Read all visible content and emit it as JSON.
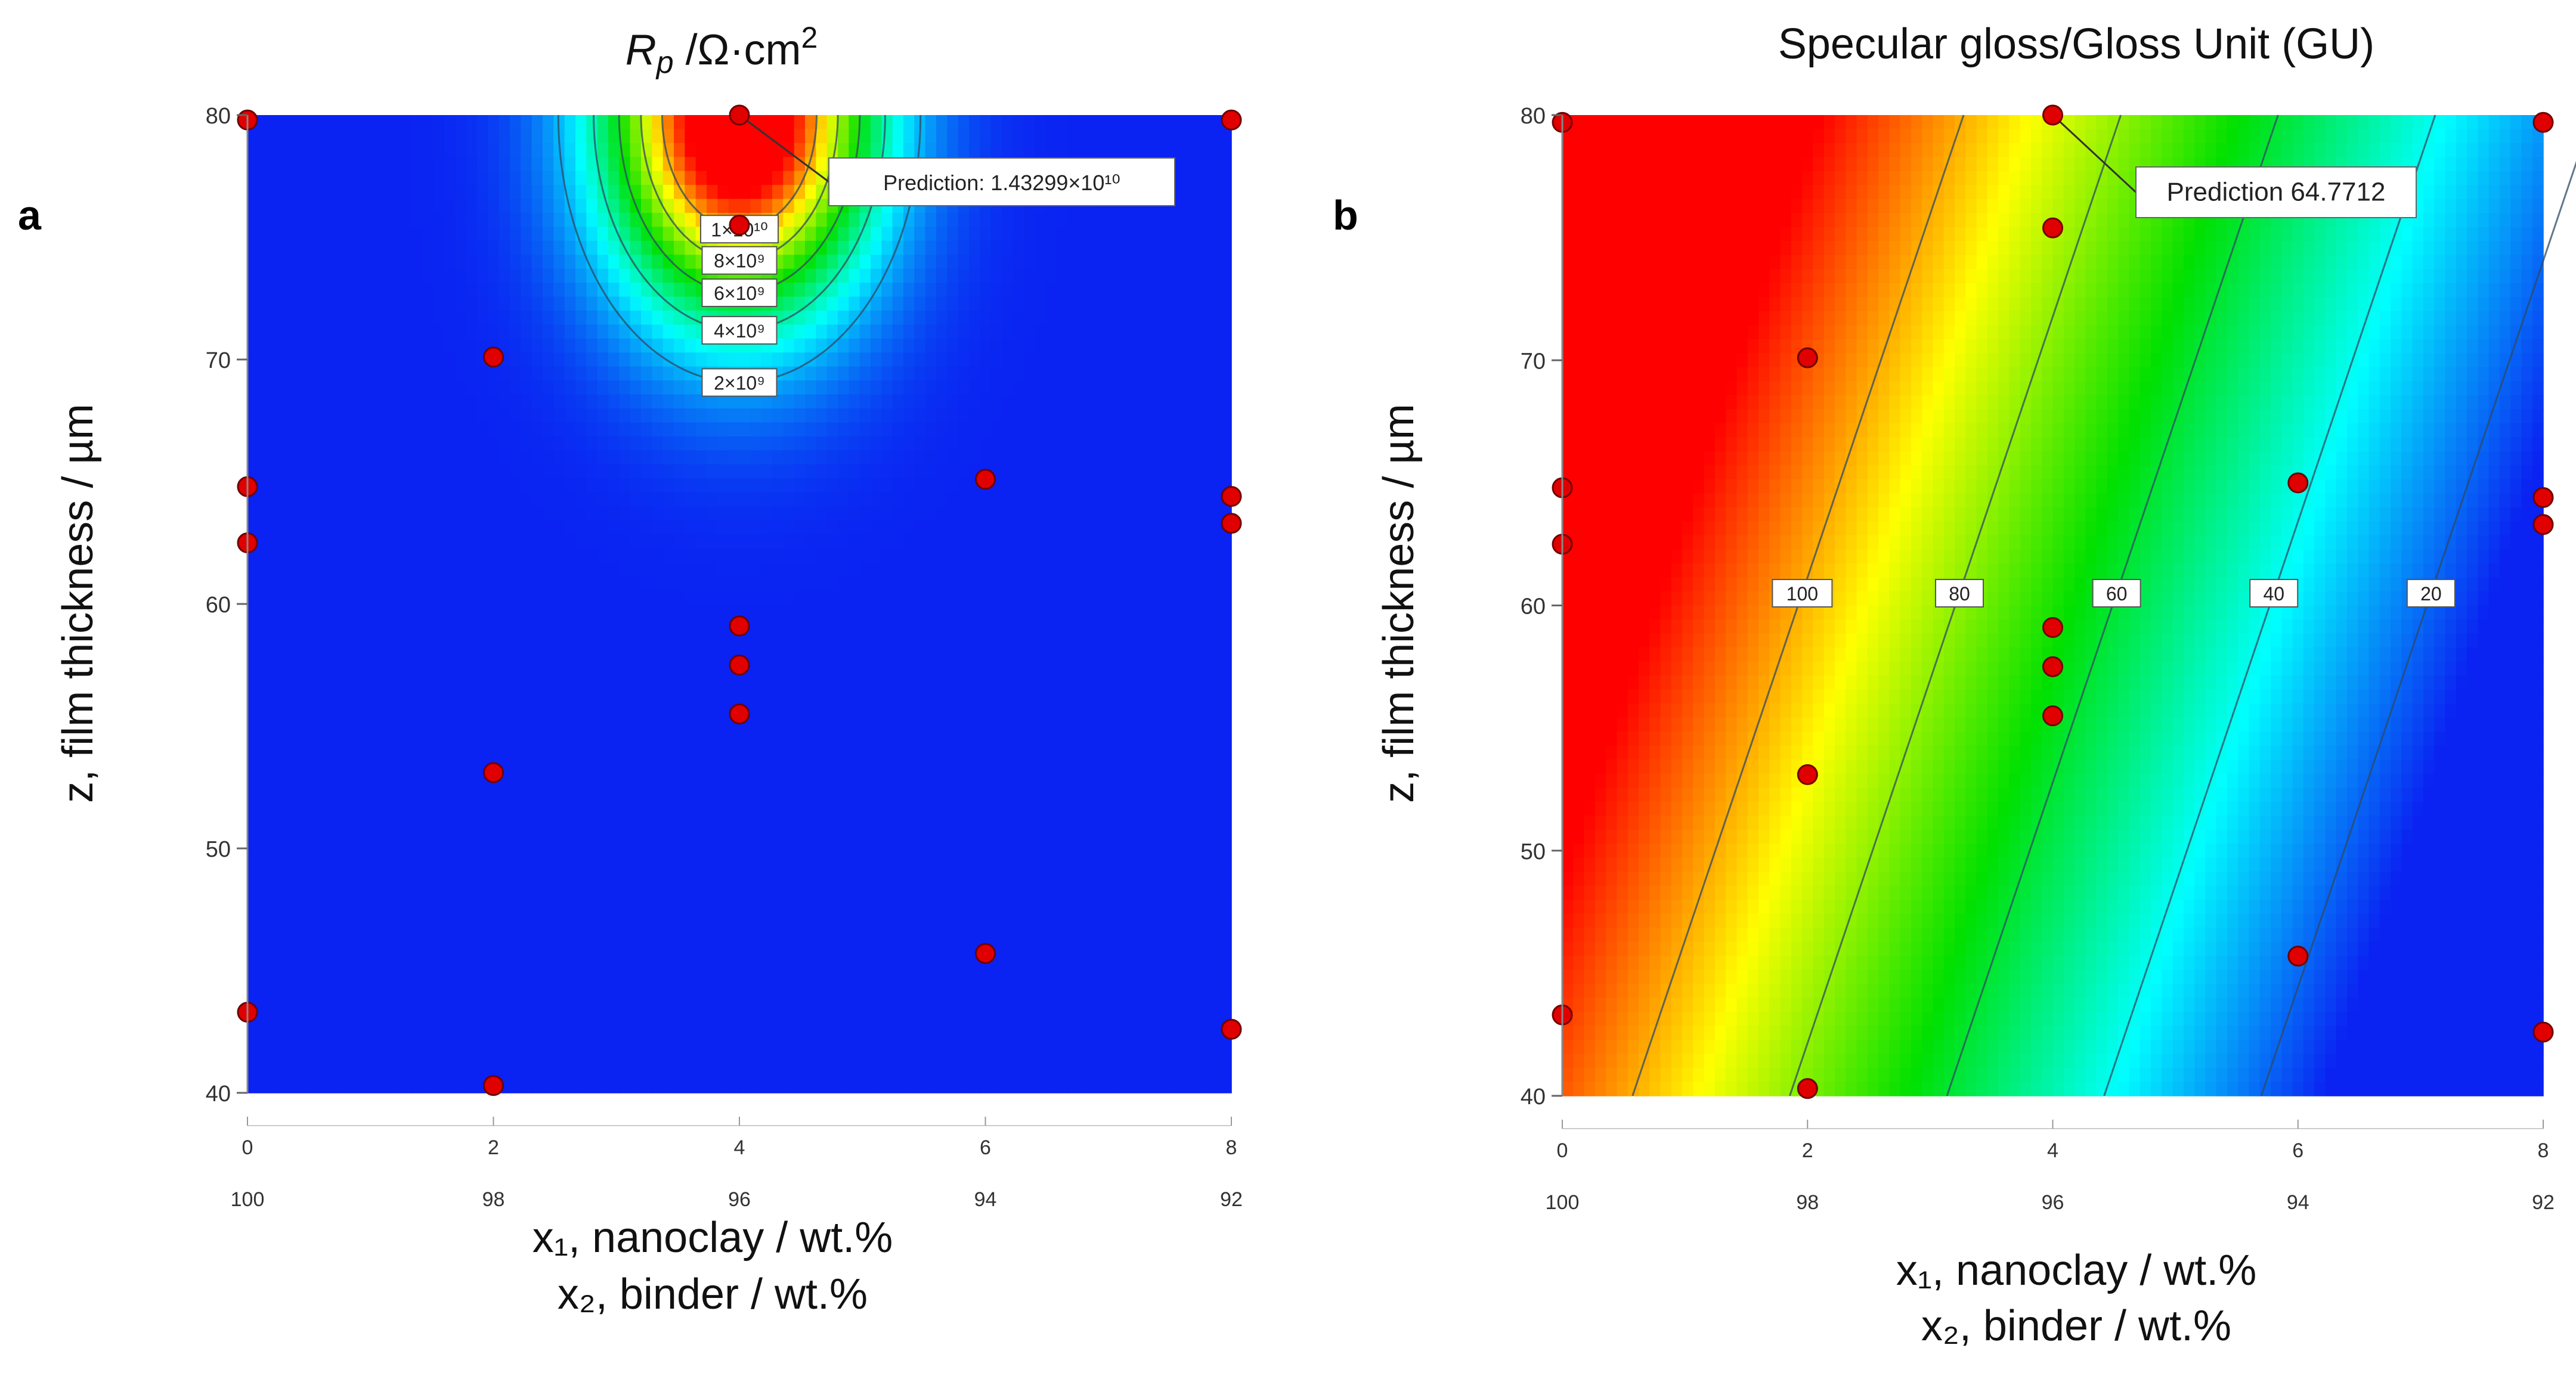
{
  "chart_data": [
    {
      "type": "heatmap",
      "panel_letter": "a",
      "title": "R",
      "title_sub": "p",
      "title_rest": " /Ω·cm",
      "title_sup": "2",
      "ylabel": "z, film thickness / µm",
      "xlabel_line1": "x₁, nanoclay / wt.%",
      "xlabel_line2": "x₂, binder / wt.%",
      "xlim": [
        0,
        8
      ],
      "ylim": [
        40,
        80
      ],
      "x_ticks": [
        "0",
        "2",
        "4",
        "6",
        "8"
      ],
      "x2_ticks": [
        "100",
        "98",
        "96",
        "94",
        "92"
      ],
      "y_ticks": [
        "40",
        "50",
        "60",
        "70",
        "80"
      ],
      "colorscale": [
        "#0a22f2",
        "#00ffff",
        "#00e000",
        "#ffff00",
        "#ff0000"
      ],
      "contours": [
        {
          "label": "2×10⁹",
          "level": 2000000000
        },
        {
          "label": "4×10⁹",
          "level": 4000000000
        },
        {
          "label": "6×10⁹",
          "level": 6000000000
        },
        {
          "label": "8×10⁹",
          "level": 8000000000
        },
        {
          "label": "1×10¹⁰",
          "level": 10000000000
        }
      ],
      "prediction_label": "Prediction: 1.43299×10¹⁰",
      "prediction_point": {
        "x": 4,
        "y": 80
      },
      "points": [
        {
          "x": 0,
          "y": 79.8
        },
        {
          "x": 0,
          "y": 64.8
        },
        {
          "x": 0,
          "y": 62.5
        },
        {
          "x": 0,
          "y": 43.3
        },
        {
          "x": 2,
          "y": 70.1
        },
        {
          "x": 2,
          "y": 53.1
        },
        {
          "x": 2,
          "y": 40.3
        },
        {
          "x": 4,
          "y": 80.0
        },
        {
          "x": 4,
          "y": 75.5
        },
        {
          "x": 4,
          "y": 59.1
        },
        {
          "x": 4,
          "y": 57.5
        },
        {
          "x": 4,
          "y": 55.5
        },
        {
          "x": 6,
          "y": 65.1
        },
        {
          "x": 6,
          "y": 45.7
        },
        {
          "x": 8,
          "y": 79.8
        },
        {
          "x": 8,
          "y": 64.4
        },
        {
          "x": 8,
          "y": 63.3
        },
        {
          "x": 8,
          "y": 42.6
        }
      ]
    },
    {
      "type": "heatmap",
      "panel_letter": "b",
      "title": "Specular gloss/Gloss Unit (GU)",
      "ylabel": "z, film thickness / µm",
      "xlabel_line1": "x₁, nanoclay / wt.%",
      "xlabel_line2": "x₂, binder / wt.%",
      "xlim": [
        0,
        8
      ],
      "ylim": [
        40,
        80
      ],
      "x_ticks": [
        "0",
        "2",
        "4",
        "6",
        "8"
      ],
      "x2_ticks": [
        "100",
        "98",
        "96",
        "94",
        "92"
      ],
      "y_ticks": [
        "40",
        "50",
        "60",
        "70",
        "80"
      ],
      "colorscale": [
        "#0a22f2",
        "#00ffff",
        "#00e000",
        "#ffff00",
        "#ff0000"
      ],
      "contours": [
        {
          "label": "100",
          "level": 100
        },
        {
          "label": "80",
          "level": 80
        },
        {
          "label": "60",
          "level": 60
        },
        {
          "label": "40",
          "level": 40
        },
        {
          "label": "20",
          "level": 20
        }
      ],
      "prediction_label": "Prediction  64.7712",
      "prediction_point": {
        "x": 4,
        "y": 80
      },
      "points": [
        {
          "x": 0,
          "y": 79.7
        },
        {
          "x": 0,
          "y": 64.8
        },
        {
          "x": 0,
          "y": 62.5
        },
        {
          "x": 0,
          "y": 43.3
        },
        {
          "x": 2,
          "y": 70.1
        },
        {
          "x": 2,
          "y": 53.1
        },
        {
          "x": 2,
          "y": 40.3
        },
        {
          "x": 4,
          "y": 80.0
        },
        {
          "x": 4,
          "y": 75.4
        },
        {
          "x": 4,
          "y": 59.1
        },
        {
          "x": 4,
          "y": 57.5
        },
        {
          "x": 4,
          "y": 55.5
        },
        {
          "x": 6,
          "y": 65.0
        },
        {
          "x": 6,
          "y": 45.7
        },
        {
          "x": 8,
          "y": 79.7
        },
        {
          "x": 8,
          "y": 64.4
        },
        {
          "x": 8,
          "y": 63.3
        },
        {
          "x": 8,
          "y": 42.6
        }
      ]
    }
  ]
}
